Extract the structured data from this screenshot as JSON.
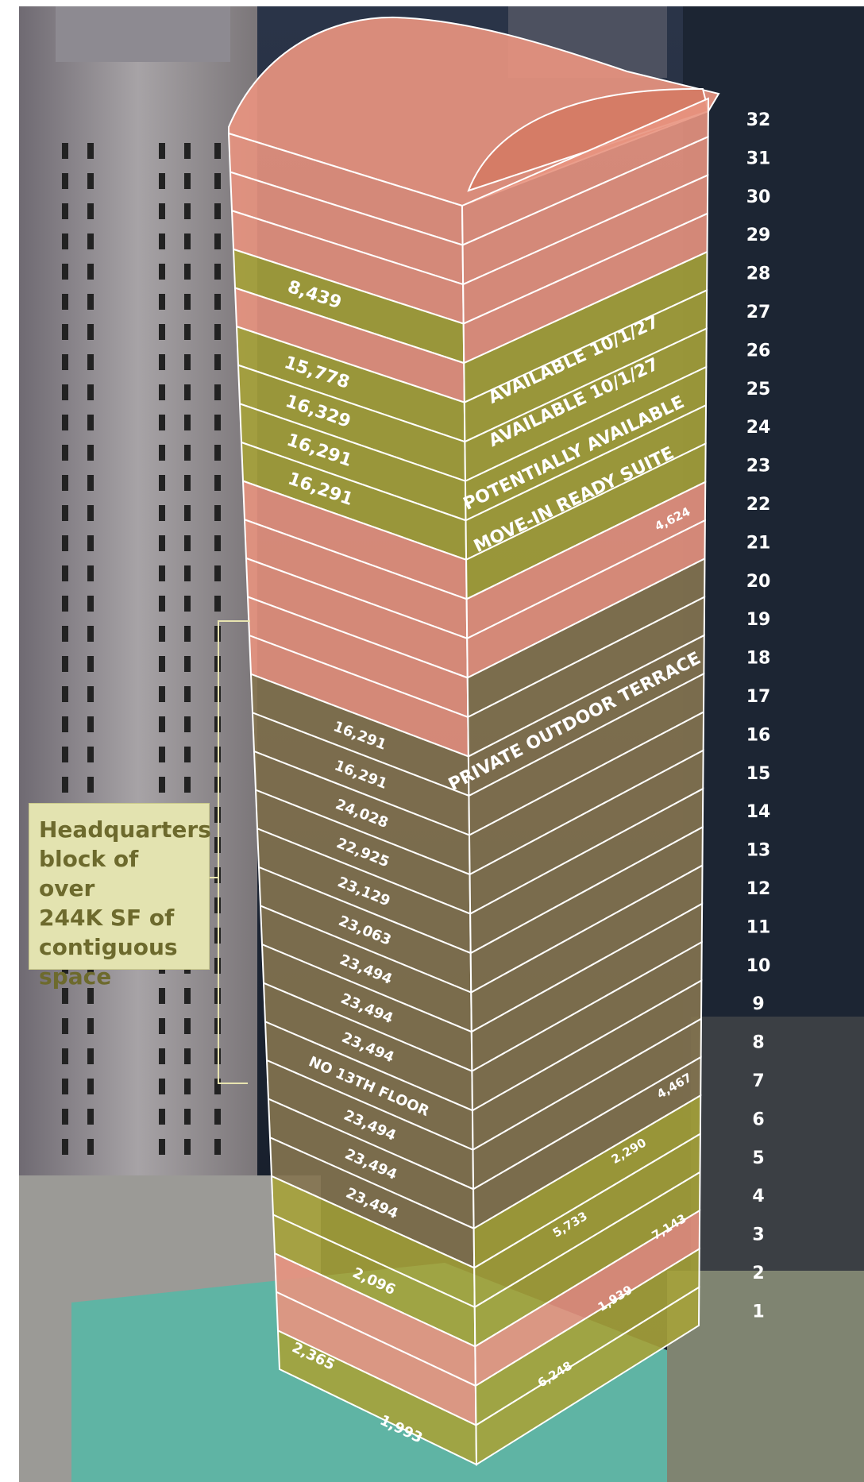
{
  "colors": {
    "leased": "#e89480",
    "available": "#a6a23a",
    "hq_block": "#857450",
    "hq_label_bg": "#e3e3b0",
    "hq_label_text": "#6d6a2d",
    "floor_number": "#ffffff",
    "background_sky": "#18202e",
    "background_building": "#8e8a8f",
    "background_roof": "#5fb4a4"
  },
  "floor_numbers": [
    "32",
    "31",
    "30",
    "29",
    "28",
    "27",
    "26",
    "25",
    "24",
    "23",
    "22",
    "21",
    "20",
    "19",
    "18",
    "17",
    "16",
    "15",
    "14",
    "13",
    "12",
    "11",
    "10",
    "9",
    "8",
    "7",
    "6",
    "5",
    "4",
    "3",
    "2",
    "1"
  ],
  "left_face_labels": [
    "8,439",
    "15,778",
    "16,329",
    "16,291",
    "16,291",
    "16,291",
    "16,291",
    "24,028",
    "22,925",
    "23,129",
    "23,063",
    "23,494",
    "23,494",
    "23,494",
    "NO 13TH FLOOR",
    "23,494",
    "23,494",
    "23,494",
    "2,096",
    "2,365",
    "1,993"
  ],
  "right_face_labels": [
    "AVAILABLE 10/1/27",
    "AVAILABLE 10/1/27",
    "POTENTIALLY AVAILABLE",
    "MOVE-IN READY SUITE",
    "4,624",
    "PRIVATE OUTDOOR TERRACE",
    "5,733",
    "2,290",
    "4,467",
    "6,248",
    "1,939",
    "7,143"
  ],
  "hq_label": {
    "lines": [
      "Headquarters",
      "block of over",
      "244K SF of",
      "contiguous",
      "space"
    ]
  }
}
